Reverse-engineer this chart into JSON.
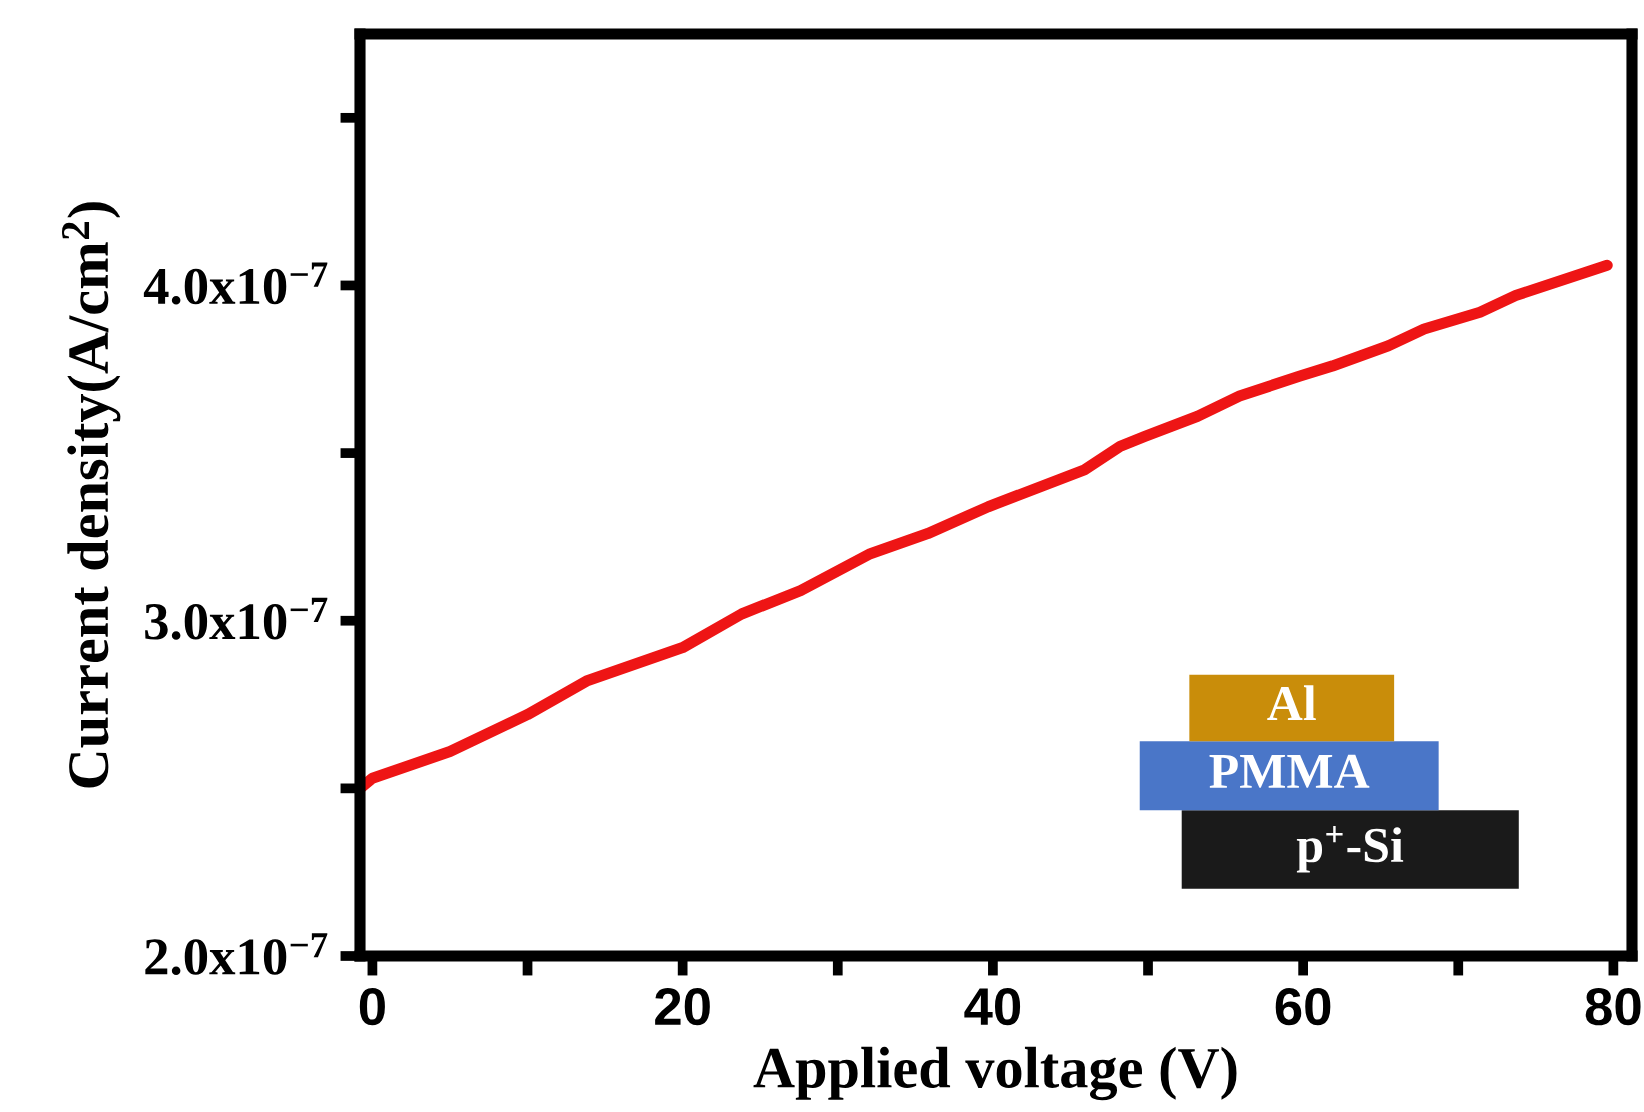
{
  "chart_data": {
    "type": "line",
    "xlabel": "Applied voltage (V)",
    "ylabel": "Current density(A/cm$^{2}$)",
    "x": [
      -0.8,
      0,
      5,
      10,
      13.8,
      20,
      23.8,
      27.6,
      32.1,
      35.8,
      39.7,
      45.9,
      48.2,
      49.8,
      53.2,
      55.9,
      59.8,
      61.9,
      65.5,
      67.8,
      71.4,
      73.7,
      79.6
    ],
    "series": [
      {
        "color": "#ee1515",
        "values": [
          2.5e-07,
          2.53e-07,
          2.61e-07,
          2.72e-07,
          2.82e-07,
          2.92e-07,
          3.02e-07,
          3.09e-07,
          3.2e-07,
          3.26e-07,
          3.34e-07,
          3.45e-07,
          3.52e-07,
          3.55e-07,
          3.61e-07,
          3.67e-07,
          3.73e-07,
          3.76e-07,
          3.82e-07,
          3.87e-07,
          3.92e-07,
          3.97e-07,
          4.06e-07
        ]
      }
    ],
    "xlim": [
      -0.8,
      81.2
    ],
    "ylim": [
      2e-07,
      4.75e-07
    ],
    "xticks": [
      0,
      {
        "value": 10,
        "label": null
      },
      20,
      {
        "value": 30,
        "label": null
      },
      40,
      {
        "value": 50,
        "label": null
      },
      60,
      {
        "value": 70,
        "label": null
      },
      80
    ],
    "yticks": [
      {
        "value": 2e-07,
        "label": "2.0x10$^{−7}$"
      },
      {
        "value": 2.5e-07,
        "label": null
      },
      {
        "value": 3e-07,
        "label": "3.0x10$^{−7}$"
      },
      {
        "value": 3.5e-07,
        "label": null
      },
      {
        "value": 4e-07,
        "label": "4.0x10$^{−7}$"
      },
      {
        "value": 4.5e-07,
        "label": null
      }
    ],
    "grid": false,
    "legend": false,
    "marker": "none",
    "line_style": "solid",
    "annotations": [
      "Al",
      "PMMA",
      "p$^{+}$-Si"
    ]
  }
}
